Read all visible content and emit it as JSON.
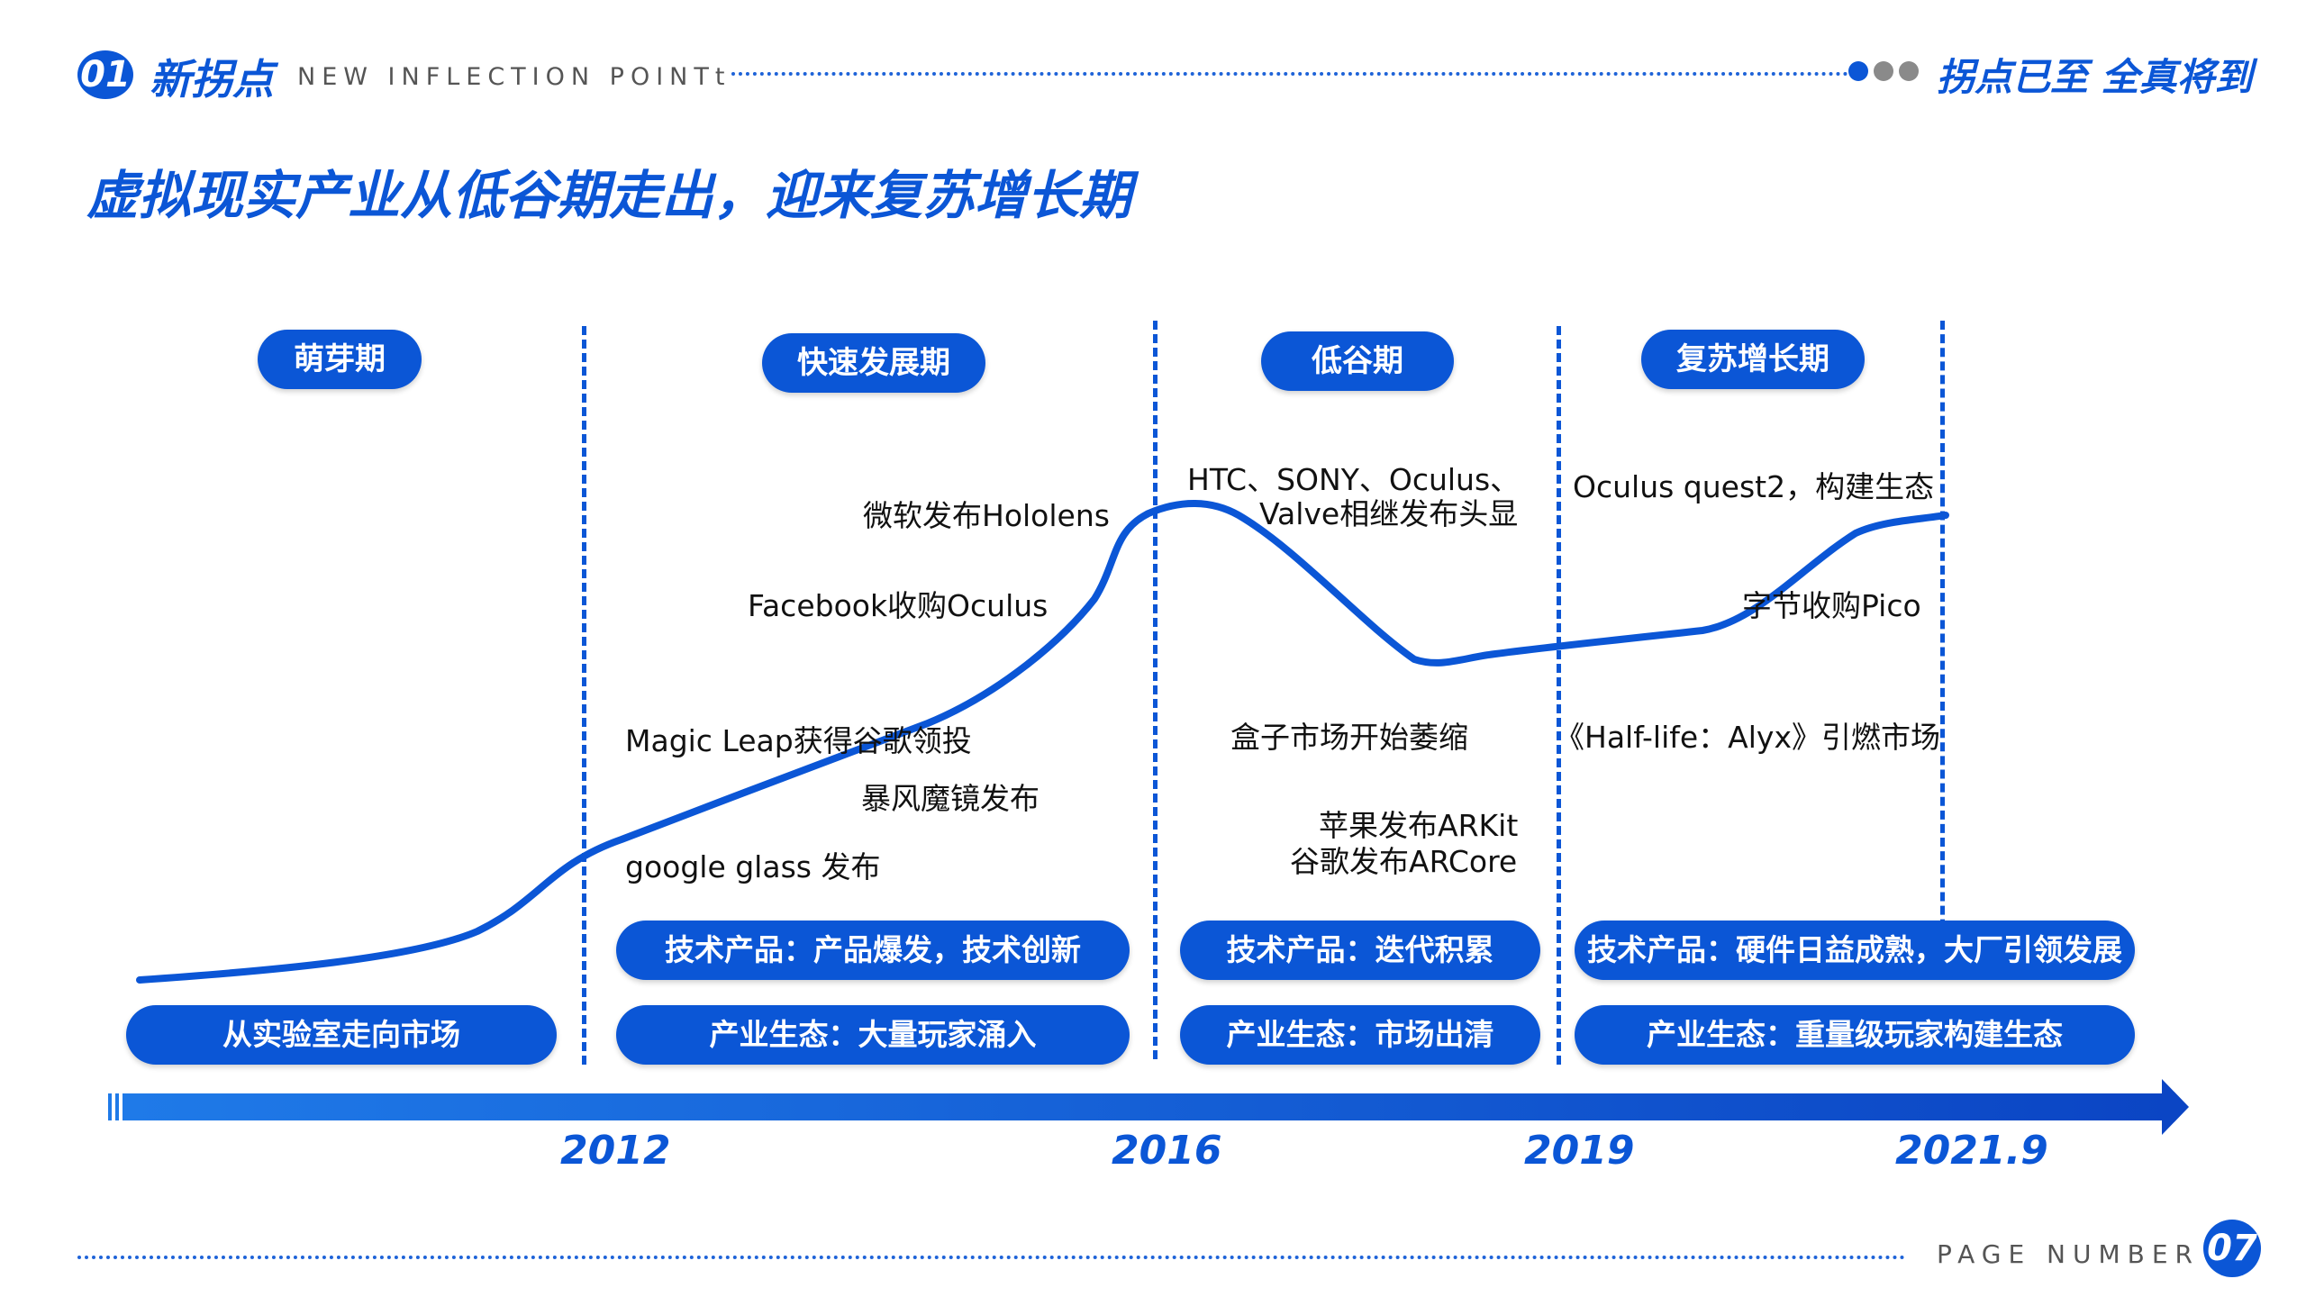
{
  "header": {
    "section_number": "01",
    "section_title": "新拐点",
    "section_subtitle": "NEW INFLECTION POINTt",
    "tagline": "拐点已至 全真将到",
    "dot_colors": [
      "#0b56d6",
      "#8a8a8a",
      "#8a8a8a"
    ]
  },
  "headline": "虚拟现实产业从低谷期走出，迎来复苏增长期",
  "phases": [
    "萌芽期",
    "快速发展期",
    "低谷期",
    "复苏增长期"
  ],
  "events": {
    "hololens": "微软发布Hololens",
    "facebook": "Facebook收购Oculus",
    "magic_leap": "Magic Leap获得谷歌领投",
    "baofeng": "暴风魔镜发布",
    "google_glass": "google glass 发布",
    "htc_line1": "HTC、SONY、Oculus、",
    "htc_line2": "Valve相继发布头显",
    "box_market": "盒子市场开始萎缩",
    "arkit": "苹果发布ARKit",
    "arcore": "谷歌发布ARCore",
    "quest2": "Oculus quest2，构建生态",
    "pico": "字节收购Pico",
    "halflife": "《Half-life：Alyx》引燃市场"
  },
  "tech_bars": {
    "p2": "技术产品：产品爆发，技术创新",
    "p3": "技术产品：迭代积累",
    "p4": "技术产品：硬件日益成熟，大厂引领发展"
  },
  "industry_bars": {
    "p1": "从实验室走向市场",
    "p2": "产业生态：大量玩家涌入",
    "p3": "产业生态：市场出清",
    "p4": "产业生态：重量级玩家构建生态"
  },
  "timeline_years": [
    "2012",
    "2016",
    "2019",
    "2021.9"
  ],
  "footer": {
    "page_label": "PAGE NUMBER",
    "page_number": "07"
  },
  "colors": {
    "accent": "#0b56d6"
  }
}
